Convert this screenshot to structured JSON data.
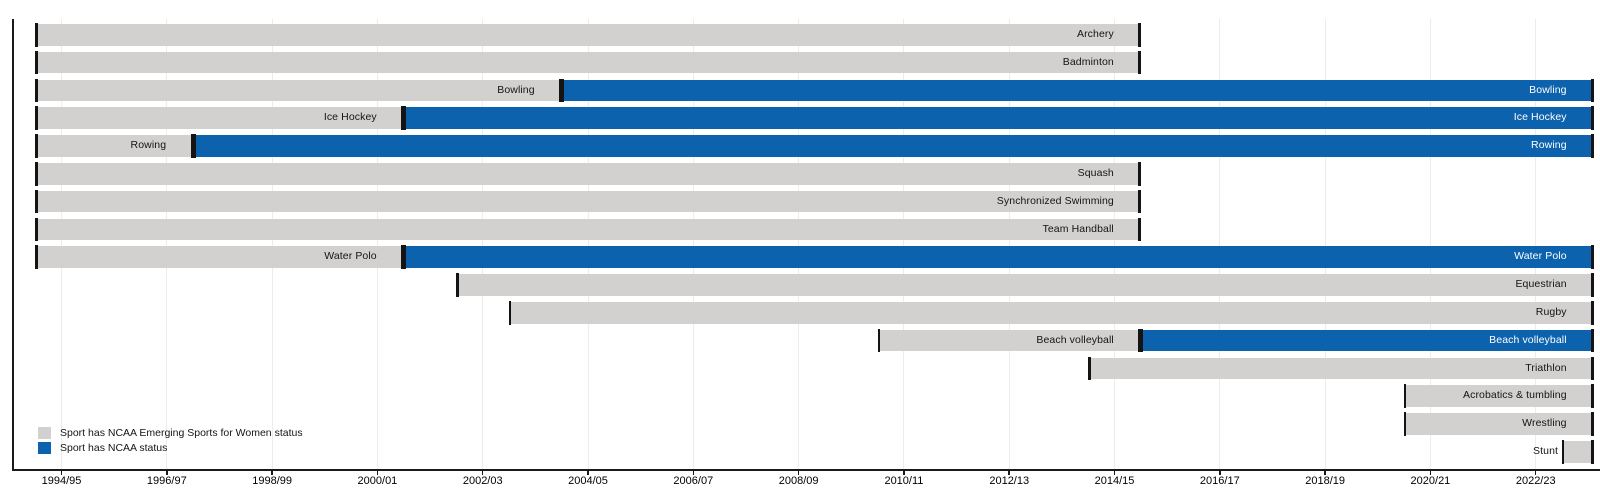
{
  "legend": {
    "items": [
      {
        "swatch": "esw",
        "label": "Sport has NCAA Emerging Sports for Women status"
      },
      {
        "swatch": "ncaa",
        "label": "Sport has NCAA status"
      }
    ]
  },
  "colors": {
    "esw": "#d3d1cf",
    "ncaa": "#0d62ae",
    "grid": "#ececec",
    "axis": "#1a1a1a"
  },
  "chart_data": {
    "type": "gantt",
    "title": "",
    "x_axis": {
      "tick_labels": [
        "1994/95",
        "1996/97",
        "1998/99",
        "2000/01",
        "2002/03",
        "2004/05",
        "2006/07",
        "2008/09",
        "2010/11",
        "2012/13",
        "2014/15",
        "2016/17",
        "2018/19",
        "2020/21",
        "2022/23"
      ],
      "tick_years": [
        1994.5,
        1996.5,
        1998.5,
        2000.5,
        2002.5,
        2004.5,
        2006.5,
        2008.5,
        2010.5,
        2012.5,
        2014.5,
        2016.5,
        2018.5,
        2020.5,
        2022.5
      ],
      "grid": true
    },
    "present_year": 2023.6,
    "legend_position": "bottom-left",
    "series": [
      {
        "name": "Archery",
        "segments": [
          {
            "status": "esw",
            "from": 1994,
            "to": 2015
          }
        ]
      },
      {
        "name": "Badminton",
        "segments": [
          {
            "status": "esw",
            "from": 1994,
            "to": 2015
          }
        ]
      },
      {
        "name": "Bowling",
        "segments": [
          {
            "status": "esw",
            "from": 1994,
            "to": 2004
          },
          {
            "status": "ncaa",
            "from": 2004,
            "to": "present"
          }
        ]
      },
      {
        "name": "Ice Hockey",
        "segments": [
          {
            "status": "esw",
            "from": 1994,
            "to": 2001
          },
          {
            "status": "ncaa",
            "from": 2001,
            "to": "present"
          }
        ]
      },
      {
        "name": "Rowing",
        "segments": [
          {
            "status": "esw",
            "from": 1994,
            "to": 1997
          },
          {
            "status": "ncaa",
            "from": 1997,
            "to": "present"
          }
        ]
      },
      {
        "name": "Squash",
        "segments": [
          {
            "status": "esw",
            "from": 1994,
            "to": 2015
          }
        ]
      },
      {
        "name": "Synchronized Swimming",
        "segments": [
          {
            "status": "esw",
            "from": 1994,
            "to": 2015
          }
        ]
      },
      {
        "name": "Team Handball",
        "segments": [
          {
            "status": "esw",
            "from": 1994,
            "to": 2015
          }
        ]
      },
      {
        "name": "Water Polo",
        "segments": [
          {
            "status": "esw",
            "from": 1994,
            "to": 2001
          },
          {
            "status": "ncaa",
            "from": 2001,
            "to": "present"
          }
        ]
      },
      {
        "name": "Equestrian",
        "segments": [
          {
            "status": "esw",
            "from": 2002,
            "to": "present"
          }
        ]
      },
      {
        "name": "Rugby",
        "segments": [
          {
            "status": "esw",
            "from": 2003,
            "to": "present"
          }
        ]
      },
      {
        "name": "Beach volleyball",
        "segments": [
          {
            "status": "esw",
            "from": 2010,
            "to": 2015
          },
          {
            "status": "ncaa",
            "from": 2015,
            "to": "present"
          }
        ]
      },
      {
        "name": "Triathlon",
        "segments": [
          {
            "status": "esw",
            "from": 2014,
            "to": "present"
          }
        ]
      },
      {
        "name": "Acrobatics & tumbling",
        "segments": [
          {
            "status": "esw",
            "from": 2020,
            "to": "present"
          }
        ]
      },
      {
        "name": "Wrestling",
        "segments": [
          {
            "status": "esw",
            "from": 2020,
            "to": "present"
          }
        ]
      },
      {
        "name": "Stunt",
        "segments": [
          {
            "status": "esw",
            "from": 2023,
            "to": "present"
          }
        ],
        "label_position": "outside-left"
      }
    ]
  }
}
